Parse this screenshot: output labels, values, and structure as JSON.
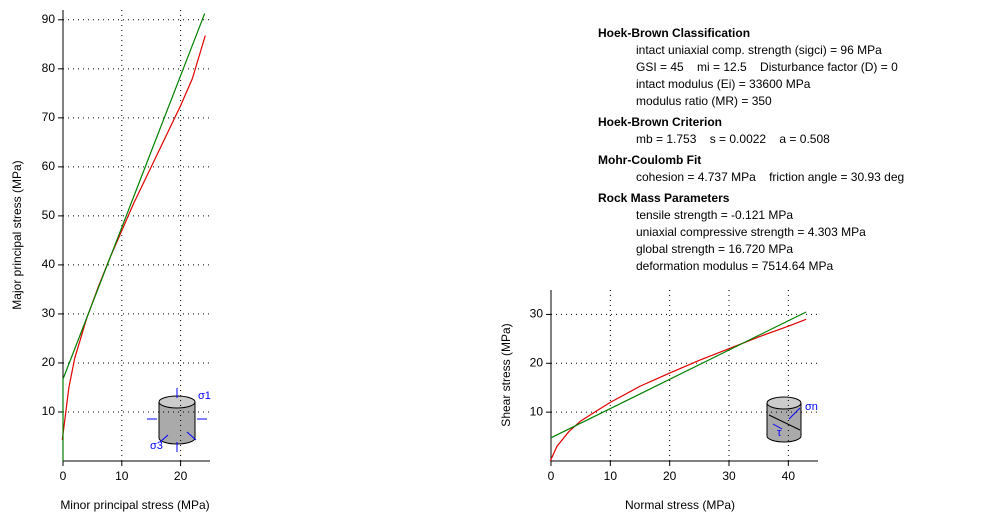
{
  "chart_data": [
    {
      "type": "line",
      "x_label": "Minor principal stress (MPa)",
      "y_label": "Major principal stress (MPa)",
      "xlim": [
        0,
        25
      ],
      "ylim": [
        0,
        92
      ],
      "xticks": [
        0,
        10,
        20
      ],
      "yticks": [
        10,
        20,
        30,
        40,
        50,
        60,
        70,
        80,
        90
      ],
      "grid": true,
      "series": [
        {
          "color": "#e00000",
          "x": [
            -0.12,
            1,
            2,
            4,
            6,
            8,
            10,
            12,
            15,
            18,
            20,
            22,
            24.2
          ],
          "values": [
            4.3,
            15,
            21,
            29,
            35.5,
            41.5,
            47,
            52.5,
            60,
            67.5,
            72.5,
            78,
            86.8
          ]
        },
        {
          "color": "#008000",
          "x": [
            0,
            0,
            24.1
          ],
          "values": [
            0,
            16.7,
            91.3
          ]
        }
      ],
      "annotations": [
        "σ1",
        "σ3"
      ]
    },
    {
      "type": "line",
      "x_label": "Normal stress (MPa)",
      "y_label": "Shear stress (MPa)",
      "xlim": [
        0,
        45
      ],
      "ylim": [
        0,
        35
      ],
      "xticks": [
        0,
        10,
        20,
        30,
        40
      ],
      "yticks": [
        10,
        20,
        30
      ],
      "grid": true,
      "series": [
        {
          "color": "#e00000",
          "x": [
            -0.12,
            1,
            3,
            5,
            8,
            10,
            15,
            20,
            25,
            30,
            35,
            40,
            43
          ],
          "values": [
            0,
            3,
            6,
            8.2,
            10.5,
            12,
            15.3,
            18,
            20.6,
            23,
            25.4,
            27.6,
            29
          ]
        },
        {
          "color": "#008000",
          "x": [
            0,
            43
          ],
          "values": [
            4.74,
            30.5
          ]
        }
      ],
      "annotations": [
        "σn",
        "τ"
      ]
    }
  ],
  "info_panel": {
    "sections": [
      {
        "title": "Hoek-Brown Classification",
        "lines": [
          "intact uniaxial comp. strength (sigci) = 96 MPa",
          "GSI = 45    mi = 12.5    Disturbance factor (D) = 0",
          "intact modulus (Ei) = 33600 MPa",
          "modulus ratio (MR) = 350"
        ]
      },
      {
        "title": "Hoek-Brown Criterion",
        "lines": [
          "mb = 1.753    s = 0.0022    a = 0.508"
        ]
      },
      {
        "title": "Mohr-Coulomb Fit",
        "lines": [
          "cohesion = 4.737 MPa    friction angle = 30.93 deg"
        ]
      },
      {
        "title": "Rock Mass Parameters",
        "lines": [
          "tensile strength = -0.121 MPa",
          "uniaxial compressive strength = 4.303 MPa",
          "global strength = 16.720 MPa",
          "deformation modulus = 7514.64 MPa"
        ]
      }
    ]
  }
}
